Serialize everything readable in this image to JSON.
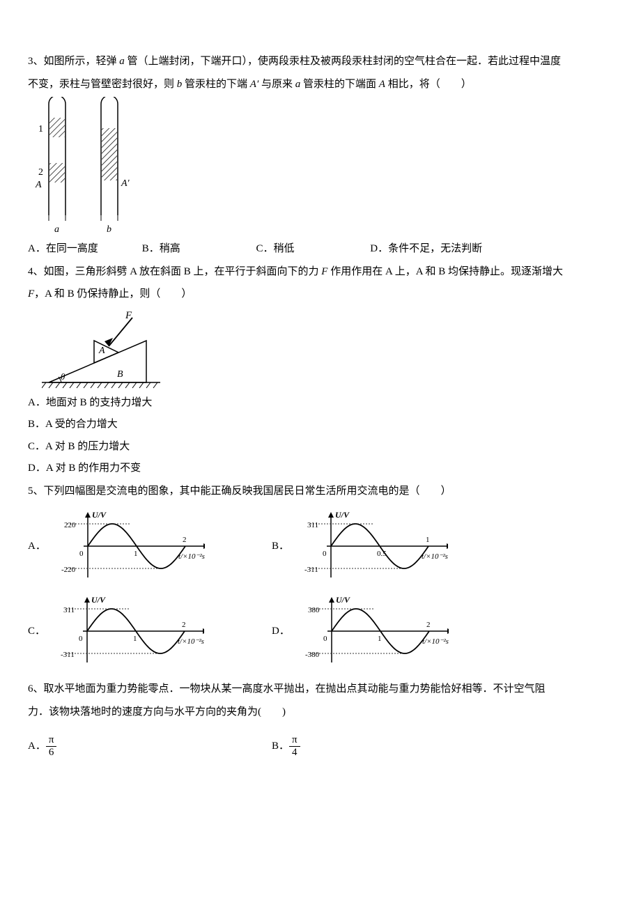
{
  "q3": {
    "text_a": "3、如图所示，轻弹 ",
    "var_a": "a",
    "text_b": " 管（上端封闭，下端开口），使两段汞柱及被两段汞柱封闭的空气柱合在一起．若此过程中温度",
    "text_c": "不变，汞柱与管壁密封很好，则 ",
    "var_b": "b",
    "text_d": " 管汞柱的下端 ",
    "var_Ap": "A′",
    "text_e": " 与原来 ",
    "var_a2": "a",
    "text_f": " 管汞柱的下端面 ",
    "var_A": "A",
    "text_g": " 相比，将（　　）",
    "optA": "A．在同一高度",
    "optB": "B．稍高",
    "optC": "C．稍低",
    "optD": "D．条件不足，无法判断",
    "labels": {
      "one": "1",
      "two": "2",
      "A": "A",
      "Ap": "A′",
      "a": "a",
      "b": "b"
    },
    "colors": {
      "stroke": "#000000",
      "hatch": "#000000"
    }
  },
  "q4": {
    "text_a": "4、如图，三角形斜劈 A 放在斜面 B 上，在平行于斜面向下的力 ",
    "var_F": "F",
    "text_b": " 作用作用在 A 上，A 和 B 均保持静止。现逐渐增大",
    "text_c": "F",
    "text_d": "，A 和 B 仍保持静止，则（　　）",
    "optA": "A．地面对 B 的支持力增大",
    "optB": "B．A 受的合力增大",
    "optC": "C．A 对 B 的压力增大",
    "optD": "D．A 对 B 的作用力不变",
    "labels": {
      "F": "F",
      "A": "A",
      "B": "B",
      "theta": "θ"
    }
  },
  "q5": {
    "text": "5、下列四幅图是交流电的图象，其中能正确反映我国居民日常生活所用交流电的是（　　）",
    "letters": {
      "A": "A．",
      "B": "B．",
      "C": "C．",
      "D": "D．"
    },
    "graphs": {
      "ylabel": "U/V",
      "xlabel": "t/×10⁻²s",
      "A": {
        "amp": "220",
        "negamp": "-220",
        "xtick": "1",
        "xtick2": "2"
      },
      "B": {
        "amp": "311",
        "negamp": "-311",
        "xtick": "0.5",
        "xtick2": "1"
      },
      "C": {
        "amp": "311",
        "negamp": "-311",
        "xtick": "1",
        "xtick2": "2"
      },
      "D": {
        "amp": "380",
        "negamp": "-380",
        "xtick": "1",
        "xtick2": "2"
      },
      "colors": {
        "axis": "#000000",
        "curve": "#000000",
        "dot": "#333333"
      },
      "font": {
        "axis": 12,
        "tick": 11
      }
    }
  },
  "q6": {
    "text_a": "6、取水平地面为重力势能零点．一物块从某一高度水平抛出，在抛出点其动能与重力势能恰好相等．不计空气阻",
    "text_b": "力．该物块落地时的速度方向与水平方向的夹角为(　　)",
    "optA_letter": "A．",
    "optA_num": "π",
    "optA_den": "6",
    "optB_letter": "B．",
    "optB_num": "π",
    "optB_den": "4"
  }
}
